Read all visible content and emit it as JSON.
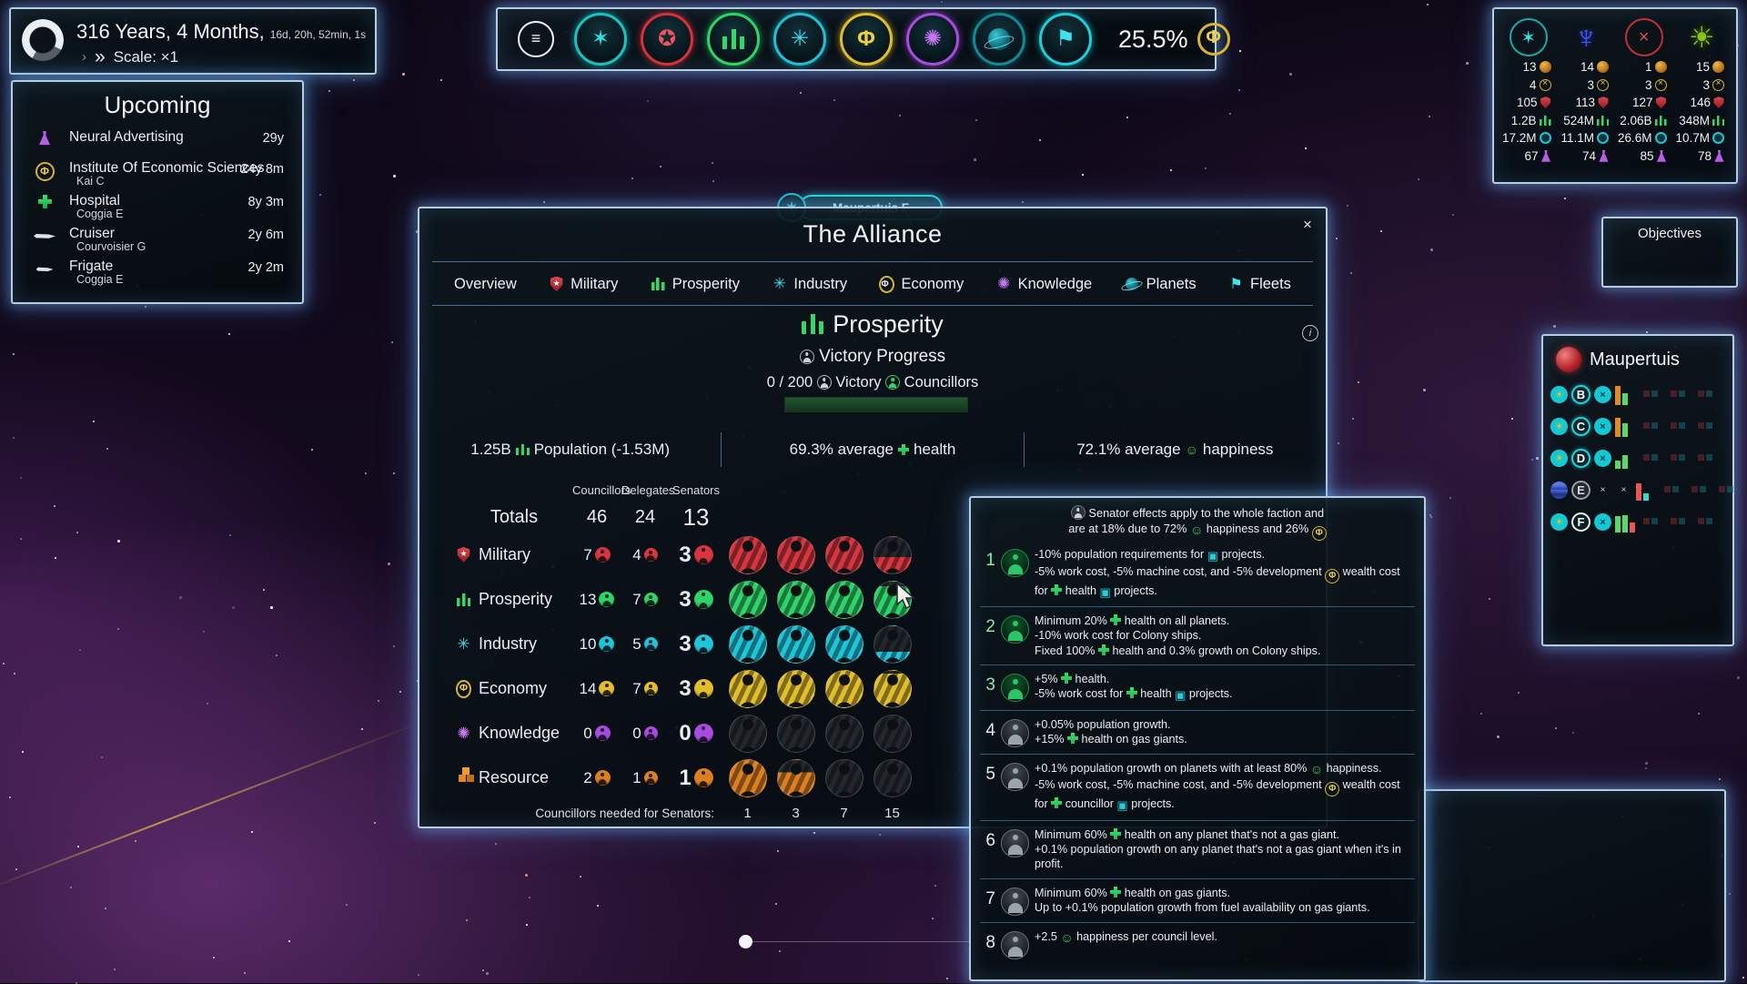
{
  "colors": {
    "military": "#d8353e",
    "prosperity": "#2ed468",
    "industry": "#1ec4d8",
    "economy": "#e2bd2c",
    "knowledge": "#a94ae0",
    "resource": "#dd7f20",
    "fleets": "#18d0d8",
    "panel_glow": "#9fd4ff"
  },
  "timer": {
    "duration": "316 Years, 4 Months,",
    "precise": "16d, 20h, 52min, 1s",
    "scale": "Scale: ×1"
  },
  "upcoming": {
    "title": "Upcoming",
    "items": [
      {
        "icon": "research",
        "name": "Neural Advertising",
        "sub": "",
        "eta": "29y"
      },
      {
        "icon": "wealth",
        "name": "Institute Of Economic Sciences",
        "sub": "Kai C",
        "eta": "24y 8m"
      },
      {
        "icon": "health",
        "name": "Hospital",
        "sub": "Coggia E",
        "eta": "8y 3m"
      },
      {
        "icon": "ship",
        "name": "Cruiser",
        "sub": "Courvoisier G",
        "eta": "2y 6m"
      },
      {
        "icon": "ship",
        "name": "Frigate",
        "sub": "Coggia E",
        "eta": "2y 2m"
      }
    ]
  },
  "topbar": {
    "badges": [
      "menu",
      "alliance",
      "military",
      "prosperity",
      "industry",
      "economy",
      "knowledge",
      "planets",
      "fleets"
    ],
    "treasury_percent": "25.5%"
  },
  "factions": {
    "row_icons": [
      "planets",
      "ships",
      "military",
      "population",
      "industry",
      "science"
    ],
    "columns": [
      {
        "emblem": "alliance",
        "values": [
          "13",
          "4",
          "105",
          "1.2B",
          "17.2M",
          "67"
        ]
      },
      {
        "emblem": "blue-faction",
        "values": [
          "14",
          "3",
          "113",
          "524M",
          "11.1M",
          "74"
        ]
      },
      {
        "emblem": "red-faction",
        "values": [
          "1",
          "3",
          "127",
          "2.06B",
          "26.6M",
          "85"
        ]
      },
      {
        "emblem": "green-faction",
        "values": [
          "15",
          "3",
          "146",
          "348M",
          "10.7M",
          "78"
        ]
      }
    ]
  },
  "objectives": {
    "title": "Objectives"
  },
  "system_label": {
    "name": "Maupertuis F"
  },
  "system": {
    "name": "Maupertuis",
    "rows": [
      {
        "letter": "B",
        "planet": "rust",
        "star": true,
        "x": true,
        "bars": [
          {
            "c": "orange",
            "h": 0.95
          },
          {
            "c": "green",
            "h": 0.55
          }
        ],
        "strips": [
          0.8,
          0.55,
          0.55
        ]
      },
      {
        "letter": "C",
        "planet": "gray",
        "star": true,
        "x": true,
        "bars": [
          {
            "c": "orange",
            "h": 0.95
          },
          {
            "c": "green",
            "h": 0.65
          }
        ],
        "strips": [
          0.5,
          0.5,
          0.55
        ]
      },
      {
        "letter": "D",
        "planet": "ice",
        "star": true,
        "x": true,
        "bars": [
          {
            "c": "green",
            "h": 0.4
          },
          {
            "c": "green",
            "h": 0.65
          }
        ],
        "strips": [
          0.35,
          0.35,
          0.4
        ]
      },
      {
        "letter": "E",
        "planet": "gas",
        "star": false,
        "x": true,
        "bars": [
          {
            "c": "red",
            "h": 0.85
          },
          {
            "c": "teal",
            "h": 0.35
          }
        ],
        "strips": [
          0.3,
          0.5,
          0.3
        ]
      },
      {
        "letter": "F",
        "planet": "earth",
        "star": true,
        "x": true,
        "bars": [
          {
            "c": "green",
            "h": 0.8
          },
          {
            "c": "green",
            "h": 0.85
          },
          {
            "c": "red",
            "h": 0.5
          }
        ],
        "strips": [
          0.25,
          0.85,
          0.45
        ]
      }
    ]
  },
  "alliance": {
    "title": "The Alliance",
    "close": "×",
    "info": "i",
    "tabs": [
      {
        "label": "Overview"
      },
      {
        "label": "Military"
      },
      {
        "label": "Prosperity"
      },
      {
        "label": "Industry"
      },
      {
        "label": "Economy"
      },
      {
        "label": "Knowledge"
      },
      {
        "label": "Planets"
      },
      {
        "label": "Fleets"
      }
    ],
    "heading": "Prosperity",
    "victory_progress_label": "[victory] Victory Progress",
    "victory_line": "0 / 200 [victory] Victory [council] Councillors",
    "stats": [
      {
        "text": "1.25B [population] Population (-1.53M)"
      },
      {
        "text": "69.3% average [health] health"
      },
      {
        "text": "72.1% average [happiness] happiness"
      }
    ],
    "table": {
      "headers": [
        "Councillors",
        "Delegates",
        "Senators"
      ],
      "totals": {
        "label": "Totals",
        "councillors": "46",
        "delegates": "24",
        "senators": "13"
      },
      "rows": [
        {
          "label": "Military",
          "icon": "military",
          "councillors": "7",
          "delegates": "4",
          "senators": "3",
          "slots": [
            1,
            1,
            1,
            0.45
          ]
        },
        {
          "label": "Prosperity",
          "icon": "prosperity",
          "councillors": "13",
          "delegates": "7",
          "senators": "3",
          "slots": [
            1,
            1,
            1,
            0.88
          ]
        },
        {
          "label": "Industry",
          "icon": "industry",
          "councillors": "10",
          "delegates": "5",
          "senators": "3",
          "slots": [
            1,
            1,
            1,
            0.3
          ]
        },
        {
          "label": "Economy",
          "icon": "economy",
          "councillors": "14",
          "delegates": "7",
          "senators": "3",
          "slots": [
            1,
            1,
            1,
            0.93
          ]
        },
        {
          "label": "Knowledge",
          "icon": "knowledge",
          "councillors": "0",
          "delegates": "0",
          "senators": "0",
          "slots": [
            0,
            0,
            0,
            0
          ]
        },
        {
          "label": "Resource",
          "icon": "resource",
          "councillors": "2",
          "delegates": "1",
          "senators": "1",
          "slots": [
            1,
            0.66,
            0,
            0
          ]
        }
      ],
      "footer_label": "Councillors needed for Senators:",
      "footer_values": [
        "1",
        "3",
        "7",
        "15"
      ]
    }
  },
  "effects": {
    "header1": "[senator] Senator effects apply to the whole faction and",
    "header2": "are at 18% due to 72% [happiness] happiness and 26% [wealth]",
    "items": [
      {
        "num": "1",
        "tone": "green",
        "lines": [
          "-10% population requirements for [project] projects.",
          "-5% work cost, -5% machine cost, and -5% development [wealth] wealth cost for [health] health [project] projects."
        ]
      },
      {
        "num": "2",
        "tone": "green",
        "lines": [
          "Minimum 20% [health] health on all planets.",
          "-10% work cost for Colony ships.",
          "Fixed 100% [health] health and 0.3% growth on Colony ships."
        ]
      },
      {
        "num": "3",
        "tone": "green",
        "lines": [
          "+5% [health] health.",
          "-5% work cost for [health] health [project] projects."
        ]
      },
      {
        "num": "4",
        "tone": "gray",
        "lines": [
          "+0.05% population growth.",
          "+15% [health] health on gas giants."
        ]
      },
      {
        "num": "5",
        "tone": "gray",
        "lines": [
          "+0.1% population growth on planets with at least 80% [happiness] happiness.",
          "-5% work cost, -5% machine cost, and -5% development [wealth] wealth cost for [health] councillor [project] projects."
        ]
      },
      {
        "num": "6",
        "tone": "gray",
        "lines": [
          "Minimum 60% [health] health on any planet that's not a gas giant.",
          "+0.1% population growth on any planet that's not a gas giant when it's in profit."
        ]
      },
      {
        "num": "7",
        "tone": "gray",
        "lines": [
          "Minimum 60% [health] health on gas giants.",
          "Up to +0.1% population growth from fuel availability on gas giants."
        ]
      },
      {
        "num": "8",
        "tone": "gray",
        "lines": [
          "+2.5 [happiness] happiness per council level."
        ]
      }
    ]
  }
}
